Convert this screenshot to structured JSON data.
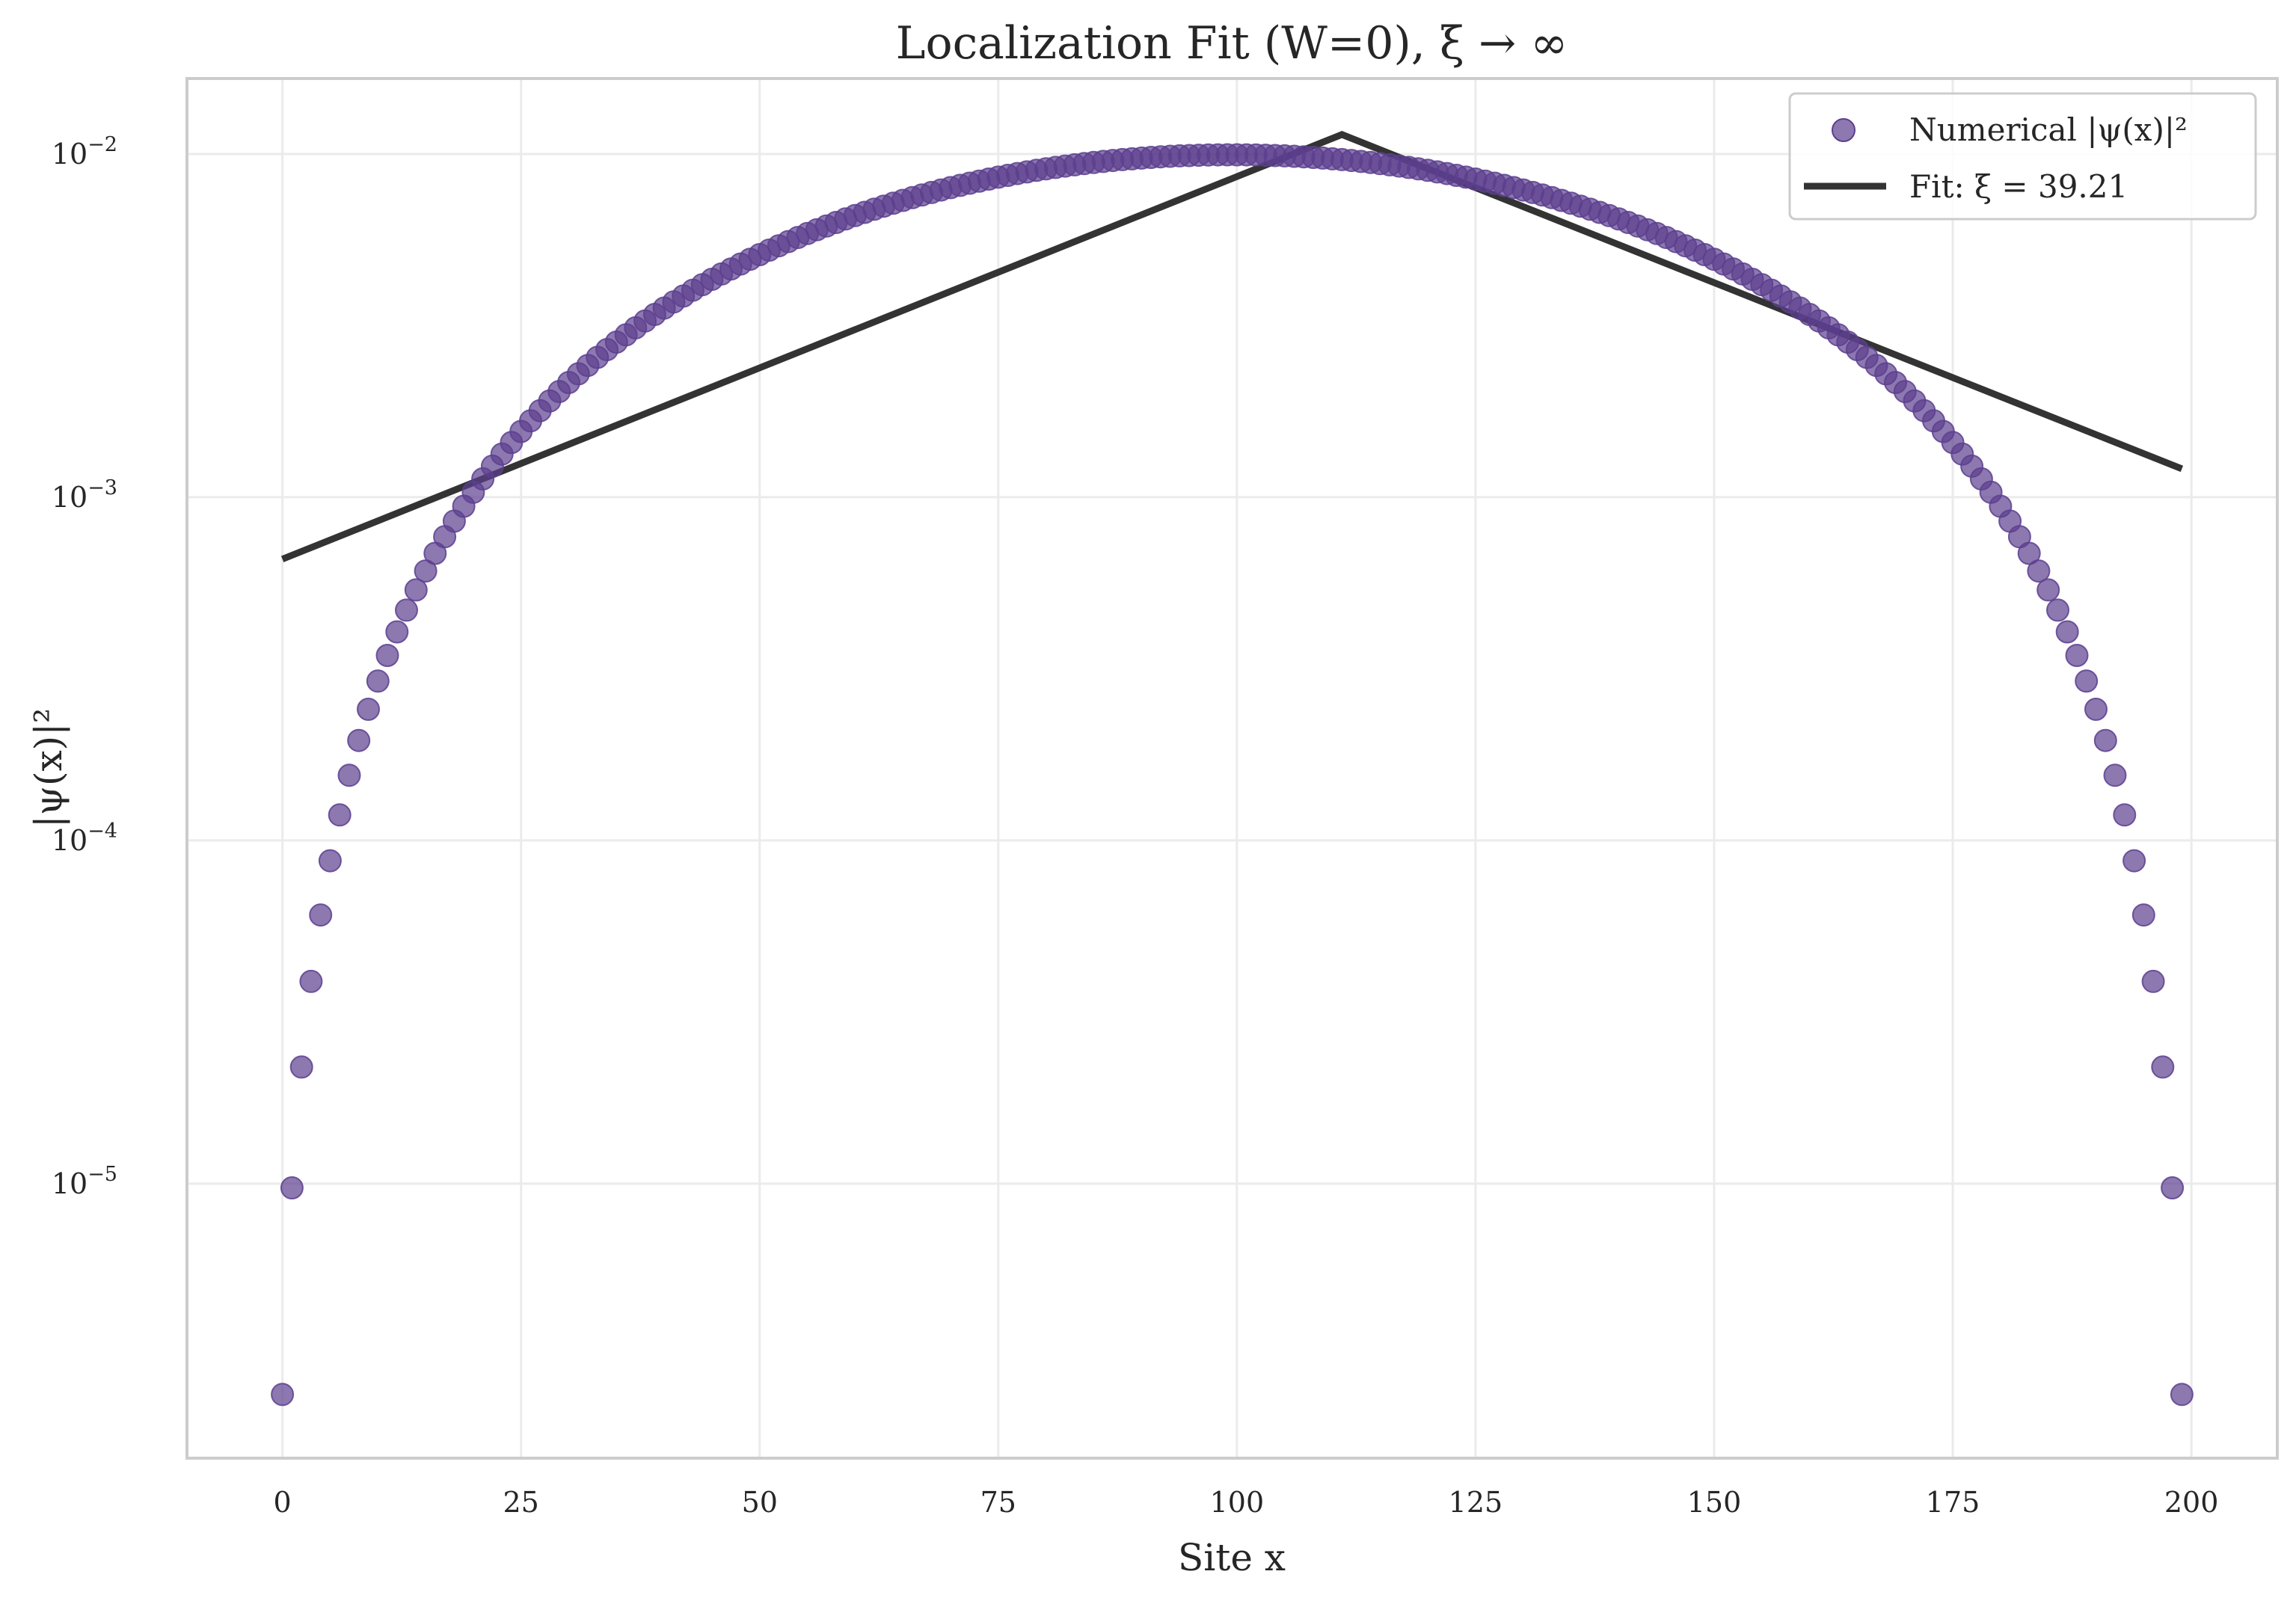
{
  "chart_data": {
    "type": "scatter",
    "title": "Localization Fit (W=0), ξ → ∞",
    "xlabel": "Site x",
    "ylabel": "|ψ(x)|²",
    "xlim": [
      -10,
      209
    ],
    "ylim_log10": [
      -5.8,
      -1.78
    ],
    "y_scale": "log",
    "grid": true,
    "legend_position": "top-right",
    "xticks": [
      0,
      25,
      50,
      75,
      100,
      125,
      150,
      175,
      200
    ],
    "yticks": [
      {
        "base": "10",
        "exp": "−2",
        "value": 0.01
      },
      {
        "base": "10",
        "exp": "−3",
        "value": 0.001
      },
      {
        "base": "10",
        "exp": "−4",
        "value": 0.0001
      },
      {
        "base": "10",
        "exp": "−5",
        "value": 1e-05
      }
    ],
    "series": [
      {
        "name": "Numerical |ψ(x)|²",
        "kind": "scatter",
        "color": "#5c3f8f",
        "model": "sine_squared",
        "n_points": 200,
        "peak_value": 0.00995,
        "x_start": 0,
        "x_end": 199
      },
      {
        "name": "Fit: ξ = 39.21",
        "kind": "line",
        "color": "#333333",
        "x": [
          0,
          111,
          199
        ],
        "y": [
          0.00066,
          0.0114,
          0.00121
        ]
      }
    ]
  }
}
